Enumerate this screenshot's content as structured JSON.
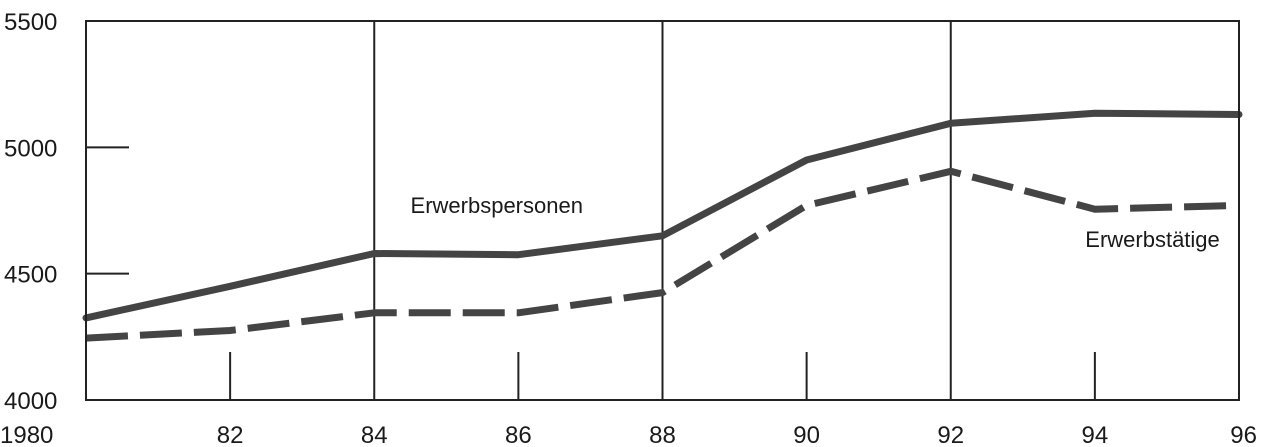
{
  "chart_data": {
    "type": "line",
    "title": "",
    "xlabel": "",
    "ylabel": "",
    "xlim": [
      1980,
      1996
    ],
    "ylim": [
      4000,
      5500
    ],
    "x_ticks": [
      {
        "value": 1980,
        "label": "1980"
      },
      {
        "value": 1982,
        "label": "82"
      },
      {
        "value": 1984,
        "label": "84"
      },
      {
        "value": 1986,
        "label": "86"
      },
      {
        "value": 1988,
        "label": "88"
      },
      {
        "value": 1990,
        "label": "90"
      },
      {
        "value": 1992,
        "label": "92"
      },
      {
        "value": 1994,
        "label": "94"
      },
      {
        "value": 1996,
        "label": "96"
      }
    ],
    "y_ticks": [
      {
        "value": 4000,
        "label": "4000"
      },
      {
        "value": 4500,
        "label": "4500"
      },
      {
        "value": 5000,
        "label": "5000"
      },
      {
        "value": 5500,
        "label": "5500"
      }
    ],
    "vertical_gridlines_at": [
      1984,
      1988,
      1992
    ],
    "minor_x_ticks_at": [
      1982,
      1986,
      1990,
      1994
    ],
    "series": [
      {
        "name": "Erwerbspersonen",
        "style": "solid",
        "color": "#444444",
        "x": [
          1980,
          1982,
          1984,
          1986,
          1988,
          1990,
          1992,
          1994,
          1996
        ],
        "values": [
          4325,
          4450,
          4580,
          4575,
          4650,
          4950,
          5095,
          5135,
          5130
        ]
      },
      {
        "name": "Erwerbstätige",
        "style": "dashed",
        "color": "#444444",
        "x": [
          1980,
          1982,
          1984,
          1986,
          1988,
          1990,
          1992,
          1994,
          1996
        ],
        "values": [
          4245,
          4275,
          4345,
          4345,
          4425,
          4770,
          4905,
          4755,
          4770
        ]
      }
    ],
    "annotations": [
      {
        "text": "Erwerbspersonen",
        "series": 0,
        "anchor_x": 1985.7,
        "anchor_y": 4740
      },
      {
        "text": "Erwerbstätige",
        "series": 1,
        "anchor_x": 1994.8,
        "anchor_y": 4605
      }
    ]
  }
}
